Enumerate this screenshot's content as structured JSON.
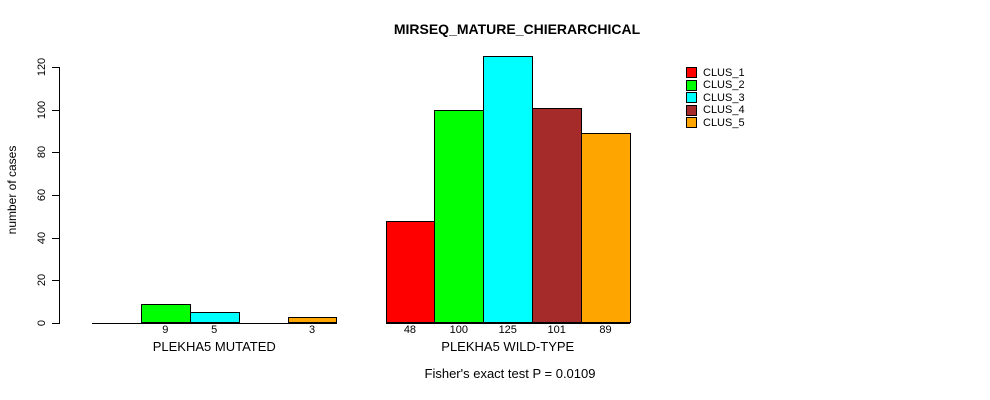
{
  "chart_data": {
    "type": "bar",
    "title": "MIRSEQ_MATURE_CHIERARCHICAL",
    "ylabel": "number of cases",
    "ylim": [
      0,
      120
    ],
    "yticks": [
      0,
      20,
      40,
      60,
      80,
      100,
      120
    ],
    "grid": false,
    "legend": {
      "position": "top-right-outside",
      "entries": [
        {
          "label": "CLUS_1",
          "color": "#ff0000"
        },
        {
          "label": "CLUS_2",
          "color": "#00ff00"
        },
        {
          "label": "CLUS_3",
          "color": "#00ffff"
        },
        {
          "label": "CLUS_4",
          "color": "#a52a2a"
        },
        {
          "label": "CLUS_5",
          "color": "#ffa500"
        }
      ]
    },
    "groups": [
      {
        "label": "PLEKHA5 MUTATED",
        "values": [
          0,
          9,
          5,
          0,
          3
        ]
      },
      {
        "label": "PLEKHA5 WILD-TYPE",
        "values": [
          48,
          100,
          125,
          101,
          89
        ]
      }
    ],
    "annotation": "Fisher's exact test P = 0.0109"
  }
}
